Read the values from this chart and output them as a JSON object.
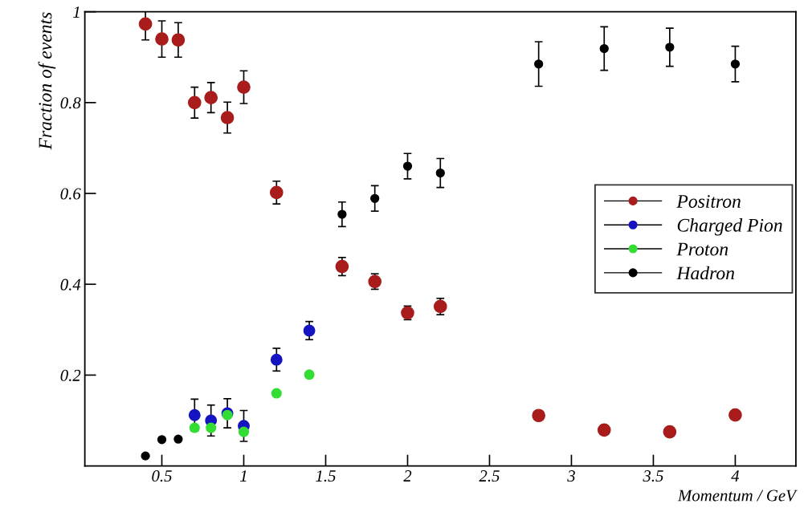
{
  "chart_data": {
    "type": "scatter",
    "xlabel": "Momentum / GeV",
    "ylabel": "Fraction of events",
    "xlim": [
      0.03,
      4.37
    ],
    "ylim": [
      0,
      1
    ],
    "xticks": [
      0.5,
      1,
      1.5,
      2,
      2.5,
      3,
      3.5,
      4
    ],
    "yticks": [
      0.2,
      0.4,
      0.6,
      0.8,
      1
    ],
    "grid": false,
    "legend": "right",
    "marker": "circle",
    "series": [
      {
        "name": "Positron",
        "color": "#a81c1c",
        "x": [
          0.4,
          0.5,
          0.6,
          0.7,
          0.8,
          0.9,
          1.0,
          1.2,
          1.6,
          1.8,
          2.0,
          2.2,
          2.8,
          3.2,
          3.6,
          4.0
        ],
        "values": [
          0.973,
          0.94,
          0.938,
          0.8,
          0.811,
          0.767,
          0.834,
          0.602,
          0.439,
          0.406,
          0.337,
          0.351,
          0.111,
          0.079,
          0.075,
          0.112
        ],
        "errors": [
          0.035,
          0.04,
          0.038,
          0.034,
          0.033,
          0.034,
          0.036,
          0.025,
          0.02,
          0.017,
          0.015,
          0.018,
          null,
          null,
          null,
          null
        ]
      },
      {
        "name": "Charged Pion",
        "color": "#1414c0",
        "x": [
          0.7,
          0.8,
          0.9,
          1.0,
          1.2,
          1.4
        ],
        "values": [
          0.112,
          0.1,
          0.116,
          0.088,
          0.234,
          0.298
        ],
        "errors": [
          0.035,
          0.034,
          0.032,
          0.034,
          0.025,
          0.02
        ]
      },
      {
        "name": "Proton",
        "color": "#33dd33",
        "x": [
          0.7,
          0.8,
          0.9,
          1.0,
          1.2,
          1.4
        ],
        "values": [
          0.084,
          0.084,
          0.112,
          0.075,
          0.16,
          0.201
        ]
      },
      {
        "name": "Hadron",
        "color": "#000000",
        "x": [
          0.4,
          0.5,
          0.6,
          1.6,
          1.8,
          2.0,
          2.2,
          2.8,
          3.2,
          3.6,
          4.0
        ],
        "values": [
          0.022,
          0.058,
          0.059,
          0.554,
          0.589,
          0.66,
          0.645,
          0.885,
          0.919,
          0.922,
          0.885
        ],
        "errors": [
          null,
          null,
          null,
          0.027,
          0.028,
          0.028,
          0.032,
          0.049,
          0.048,
          0.042,
          0.039
        ]
      }
    ]
  }
}
